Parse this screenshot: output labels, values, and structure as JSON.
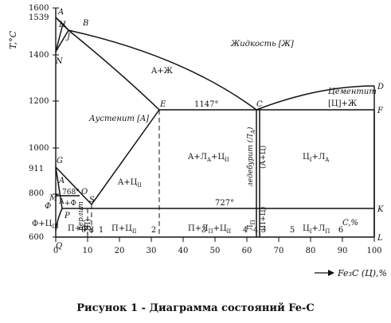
{
  "title": "",
  "caption": "Рисунок 1 - Диаграмма состояний Fe-C",
  "axes": {
    "y_label": "T,°C",
    "x_label_top": "C,%",
    "x_label_bottom": "Fe₃C (Ц),%",
    "y_ticks": [
      "1600",
      "1539",
      "1400",
      "1200",
      "1000",
      "911",
      "800",
      "600"
    ],
    "x_ticks_bottom": [
      "0",
      "10",
      "20",
      "30",
      "40",
      "50",
      "60",
      "70",
      "80",
      "90",
      "100"
    ],
    "x_ticks_top": [
      "0,8",
      "1",
      "2",
      "3",
      "4",
      "4,3",
      "5",
      "6"
    ]
  },
  "points": {
    "A": "A",
    "H": "H",
    "B": "B",
    "J": "J",
    "N": "N",
    "E": "E",
    "C": "C",
    "D": "D",
    "F": "F",
    "G": "G",
    "O": "O",
    "S": "S",
    "P": "P",
    "M": "M",
    "K": "K",
    "L": "L",
    "Q": "Q",
    "phi": "Ф",
    "A2": "A"
  },
  "regions": {
    "liquid": "Жидкость [Ж]",
    "a_zh": "A+Ж",
    "austenite": "Аустенит [A]",
    "cementite": "Цементит",
    "ts_zh": "[Ц]+Ж",
    "t1147": "1147°",
    "t727": "727°",
    "t768": "768°",
    "a_la_c2": "A+Л",
    "a_la_c2_sub1": "A",
    "a_la_c2_plus": "+Ц",
    "a_la_c2_sub2": "II",
    "c1_la": "Ц",
    "c1_la_sub1": "I",
    "c1_la_plus": "+Л",
    "c1_la_sub2": "A",
    "a_c2": "A+Ц",
    "a_c2_sub": "II",
    "a_phi": "A",
    "plus_phi": "+Ф",
    "perlit_v": "перлит",
    "p_label_v": "(П)",
    "p_c2": "П+Ц",
    "p_c2_sub": "II",
    "p_lp_c2": "П+Л",
    "p_lp_c2_sub1": "П",
    "p_lp_c2_plus": "+Ц",
    "p_lp_c2_sub2": "II",
    "c1_lp": "Ц",
    "c1_lp_sub1": "I",
    "c1_lp_plus": "+Л",
    "c1_lp_sub2": "П",
    "p_phi": "П+Ф",
    "phi_c3": "Ф+Ц",
    "phi_c3_sub": "III",
    "ledeburit_la": "ледебурит (Л",
    "ledeburit_la_sub": "A",
    "a_c_v": "(А+Ц)",
    "lp_v": "Л",
    "lp_v_sub": "П",
    "p_c_v": "(П+Ц)"
  }
}
